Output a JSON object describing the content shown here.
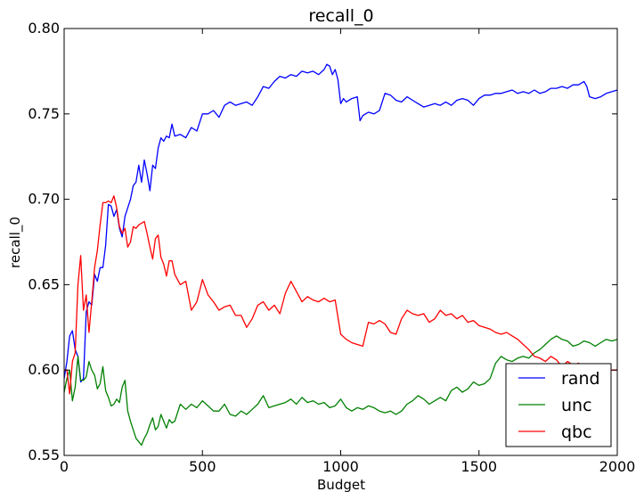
{
  "chart_data": {
    "type": "line",
    "title": "recall_0",
    "xlabel": "Budget",
    "ylabel": "recall_0",
    "xlim": [
      0,
      2000
    ],
    "ylim": [
      0.55,
      0.8
    ],
    "xticks": [
      0,
      500,
      1000,
      1500,
      2000
    ],
    "xtick_labels": [
      "0",
      "500",
      "1000",
      "1500",
      "2000"
    ],
    "yticks": [
      0.55,
      0.6,
      0.65,
      0.7,
      0.75,
      0.8
    ],
    "ytick_labels": [
      "0.55",
      "0.60",
      "0.65",
      "0.70",
      "0.75",
      "0.80"
    ],
    "grid": false,
    "legend_position": "lower-right",
    "series": [
      {
        "name": "rand",
        "color": "#0000ff",
        "x": [
          0,
          10,
          20,
          30,
          40,
          50,
          60,
          70,
          80,
          90,
          100,
          110,
          120,
          130,
          140,
          150,
          160,
          170,
          180,
          190,
          200,
          210,
          220,
          230,
          240,
          250,
          260,
          270,
          280,
          290,
          300,
          310,
          320,
          330,
          340,
          350,
          360,
          370,
          380,
          390,
          400,
          420,
          440,
          460,
          480,
          500,
          520,
          540,
          560,
          580,
          600,
          620,
          640,
          660,
          680,
          700,
          720,
          740,
          760,
          780,
          800,
          820,
          840,
          860,
          880,
          900,
          920,
          940,
          950,
          960,
          970,
          980,
          990,
          1000,
          1010,
          1020,
          1040,
          1060,
          1070,
          1080,
          1100,
          1120,
          1140,
          1160,
          1180,
          1200,
          1220,
          1240,
          1260,
          1280,
          1300,
          1320,
          1340,
          1360,
          1380,
          1400,
          1420,
          1440,
          1460,
          1480,
          1500,
          1520,
          1540,
          1560,
          1580,
          1600,
          1620,
          1640,
          1660,
          1680,
          1700,
          1720,
          1740,
          1760,
          1780,
          1800,
          1820,
          1840,
          1860,
          1880,
          1890,
          1900,
          1920,
          1940,
          1960,
          1980,
          2000
        ],
        "y": [
          0.595,
          0.605,
          0.62,
          0.623,
          0.612,
          0.608,
          0.593,
          0.595,
          0.634,
          0.64,
          0.638,
          0.656,
          0.652,
          0.66,
          0.66,
          0.673,
          0.697,
          0.696,
          0.69,
          0.694,
          0.683,
          0.678,
          0.69,
          0.695,
          0.7,
          0.708,
          0.71,
          0.72,
          0.71,
          0.723,
          0.715,
          0.705,
          0.72,
          0.718,
          0.73,
          0.736,
          0.734,
          0.737,
          0.736,
          0.744,
          0.737,
          0.738,
          0.736,
          0.742,
          0.74,
          0.75,
          0.75,
          0.752,
          0.748,
          0.755,
          0.757,
          0.755,
          0.756,
          0.757,
          0.755,
          0.76,
          0.766,
          0.765,
          0.769,
          0.772,
          0.771,
          0.773,
          0.772,
          0.775,
          0.774,
          0.775,
          0.773,
          0.776,
          0.779,
          0.778,
          0.773,
          0.776,
          0.77,
          0.756,
          0.759,
          0.757,
          0.759,
          0.76,
          0.746,
          0.749,
          0.751,
          0.75,
          0.752,
          0.762,
          0.761,
          0.758,
          0.757,
          0.76,
          0.758,
          0.756,
          0.754,
          0.755,
          0.756,
          0.755,
          0.757,
          0.755,
          0.758,
          0.759,
          0.758,
          0.755,
          0.759,
          0.761,
          0.761,
          0.762,
          0.762,
          0.763,
          0.764,
          0.762,
          0.763,
          0.762,
          0.764,
          0.762,
          0.763,
          0.765,
          0.765,
          0.766,
          0.765,
          0.767,
          0.767,
          0.769,
          0.766,
          0.76,
          0.759,
          0.76,
          0.762,
          0.763,
          0.764
        ]
      },
      {
        "name": "unc",
        "color": "#008000",
        "x": [
          0,
          10,
          20,
          30,
          40,
          50,
          60,
          70,
          80,
          90,
          100,
          110,
          120,
          130,
          140,
          150,
          160,
          170,
          180,
          190,
          200,
          210,
          220,
          230,
          240,
          250,
          260,
          270,
          280,
          290,
          300,
          310,
          320,
          330,
          340,
          350,
          360,
          370,
          380,
          390,
          400,
          420,
          440,
          460,
          480,
          500,
          520,
          540,
          560,
          580,
          600,
          620,
          640,
          660,
          680,
          700,
          720,
          740,
          760,
          780,
          800,
          820,
          840,
          860,
          880,
          900,
          920,
          940,
          960,
          980,
          1000,
          1020,
          1040,
          1060,
          1080,
          1100,
          1120,
          1140,
          1160,
          1180,
          1200,
          1220,
          1240,
          1260,
          1280,
          1300,
          1320,
          1340,
          1360,
          1380,
          1400,
          1420,
          1440,
          1460,
          1480,
          1500,
          1520,
          1540,
          1560,
          1580,
          1600,
          1620,
          1640,
          1660,
          1680,
          1700,
          1720,
          1740,
          1760,
          1780,
          1800,
          1820,
          1840,
          1860,
          1880,
          1900,
          1920,
          1940,
          1960,
          1980,
          2000
        ],
        "y": [
          0.587,
          0.595,
          0.6,
          0.582,
          0.59,
          0.608,
          0.594,
          0.594,
          0.596,
          0.605,
          0.6,
          0.597,
          0.589,
          0.592,
          0.602,
          0.588,
          0.584,
          0.579,
          0.58,
          0.583,
          0.581,
          0.59,
          0.594,
          0.576,
          0.57,
          0.565,
          0.56,
          0.558,
          0.556,
          0.56,
          0.563,
          0.568,
          0.572,
          0.565,
          0.567,
          0.574,
          0.57,
          0.566,
          0.571,
          0.569,
          0.57,
          0.58,
          0.577,
          0.58,
          0.578,
          0.582,
          0.579,
          0.576,
          0.576,
          0.58,
          0.574,
          0.573,
          0.576,
          0.574,
          0.577,
          0.58,
          0.585,
          0.578,
          0.579,
          0.58,
          0.581,
          0.583,
          0.58,
          0.584,
          0.581,
          0.582,
          0.58,
          0.581,
          0.578,
          0.579,
          0.583,
          0.578,
          0.576,
          0.578,
          0.577,
          0.579,
          0.578,
          0.576,
          0.575,
          0.576,
          0.574,
          0.576,
          0.58,
          0.582,
          0.585,
          0.583,
          0.58,
          0.582,
          0.584,
          0.582,
          0.588,
          0.59,
          0.587,
          0.589,
          0.593,
          0.591,
          0.592,
          0.595,
          0.604,
          0.608,
          0.606,
          0.605,
          0.607,
          0.608,
          0.607,
          0.61,
          0.612,
          0.615,
          0.618,
          0.62,
          0.618,
          0.617,
          0.614,
          0.615,
          0.617,
          0.616,
          0.614,
          0.616,
          0.618,
          0.617,
          0.618
        ]
      },
      {
        "name": "qbc",
        "color": "#ff0000",
        "x": [
          0,
          10,
          20,
          30,
          40,
          50,
          60,
          70,
          80,
          90,
          100,
          110,
          120,
          130,
          140,
          150,
          160,
          170,
          180,
          190,
          200,
          210,
          220,
          230,
          240,
          250,
          260,
          270,
          280,
          290,
          300,
          310,
          320,
          330,
          340,
          350,
          360,
          370,
          380,
          390,
          400,
          420,
          440,
          460,
          480,
          500,
          520,
          540,
          560,
          580,
          600,
          620,
          640,
          660,
          680,
          700,
          720,
          740,
          760,
          780,
          800,
          820,
          840,
          860,
          880,
          900,
          920,
          940,
          960,
          980,
          1000,
          1020,
          1040,
          1060,
          1080,
          1100,
          1120,
          1140,
          1160,
          1180,
          1200,
          1220,
          1240,
          1260,
          1280,
          1300,
          1320,
          1340,
          1360,
          1380,
          1400,
          1420,
          1440,
          1460,
          1480,
          1500,
          1520,
          1540,
          1560,
          1580,
          1600,
          1620,
          1640,
          1660,
          1680,
          1700,
          1720,
          1740,
          1760,
          1780,
          1800,
          1820,
          1840,
          1860,
          1880,
          1900,
          1920,
          1940,
          1960,
          1980,
          2000
        ],
        "y": [
          0.6,
          0.6,
          0.586,
          0.605,
          0.61,
          0.65,
          0.667,
          0.635,
          0.644,
          0.622,
          0.64,
          0.66,
          0.67,
          0.685,
          0.698,
          0.698,
          0.699,
          0.698,
          0.702,
          0.695,
          0.684,
          0.68,
          0.683,
          0.672,
          0.675,
          0.684,
          0.683,
          0.685,
          0.686,
          0.687,
          0.68,
          0.672,
          0.665,
          0.677,
          0.679,
          0.666,
          0.662,
          0.655,
          0.664,
          0.664,
          0.656,
          0.65,
          0.652,
          0.635,
          0.64,
          0.653,
          0.644,
          0.64,
          0.635,
          0.637,
          0.638,
          0.632,
          0.632,
          0.625,
          0.63,
          0.638,
          0.64,
          0.635,
          0.638,
          0.633,
          0.645,
          0.652,
          0.646,
          0.64,
          0.643,
          0.641,
          0.64,
          0.642,
          0.64,
          0.641,
          0.621,
          0.618,
          0.616,
          0.615,
          0.614,
          0.628,
          0.627,
          0.629,
          0.627,
          0.622,
          0.621,
          0.63,
          0.635,
          0.633,
          0.632,
          0.633,
          0.628,
          0.63,
          0.635,
          0.632,
          0.633,
          0.63,
          0.632,
          0.628,
          0.629,
          0.626,
          0.625,
          0.624,
          0.622,
          0.621,
          0.622,
          0.62,
          0.618,
          0.615,
          0.612,
          0.608,
          0.607,
          0.605,
          0.608,
          0.606,
          0.602,
          0.605,
          0.603,
          0.604,
          0.602,
          0.6,
          0.601,
          0.603,
          0.602,
          0.6,
          0.6
        ]
      }
    ]
  }
}
